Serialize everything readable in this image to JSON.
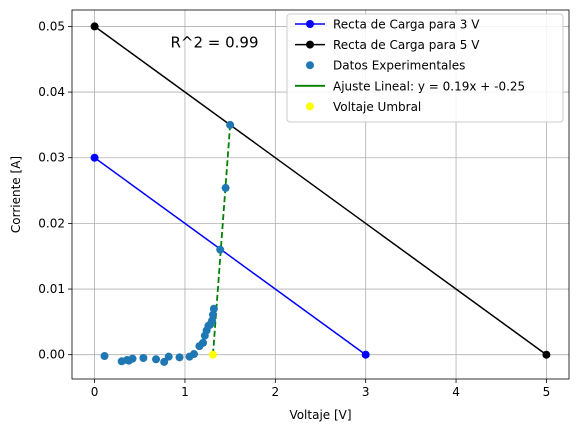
{
  "chart_data": {
    "type": "scatter",
    "xlabel": "Voltaje [V]",
    "ylabel": "Corriente [A]",
    "xlim": [
      -0.25,
      5.25
    ],
    "ylim": [
      -0.0037,
      0.0525
    ],
    "xticks": [
      0,
      1,
      2,
      3,
      4,
      5
    ],
    "yticks": [
      0.0,
      0.01,
      0.02,
      0.03,
      0.04,
      0.05
    ],
    "xtick_labels": [
      "0",
      "1",
      "2",
      "3",
      "4",
      "5"
    ],
    "ytick_labels": [
      "0.00",
      "0.01",
      "0.02",
      "0.03",
      "0.04",
      "0.05"
    ],
    "grid": true,
    "annotation": "R^2 = 0.99",
    "legend_position": "upper right",
    "series": [
      {
        "name": "Recta de Carga para 3 V",
        "kind": "line-marker",
        "color": "#0000ff",
        "x": [
          0,
          3
        ],
        "y": [
          0.03,
          0.0
        ]
      },
      {
        "name": "Recta de Carga para 5 V",
        "kind": "line-marker",
        "color": "#000000",
        "x": [
          0,
          5
        ],
        "y": [
          0.05,
          0.0
        ]
      },
      {
        "name": "Datos Experimentales",
        "kind": "scatter",
        "color": "#1f77b4",
        "x": [
          0.11,
          0.3,
          0.36,
          0.38,
          0.42,
          0.54,
          0.68,
          0.77,
          0.82,
          0.94,
          1.05,
          1.1,
          1.16,
          1.2,
          1.22,
          1.24,
          1.26,
          1.28,
          1.3,
          1.31,
          1.32,
          1.39,
          1.45,
          1.5
        ],
        "y": [
          -0.0002,
          -0.001,
          -0.0008,
          -0.0009,
          -0.0006,
          -0.0005,
          -0.0007,
          -0.0011,
          -0.0003,
          -0.0004,
          -0.0003,
          0.0001,
          0.0013,
          0.0018,
          0.0029,
          0.0037,
          0.0044,
          0.0046,
          0.0052,
          0.0061,
          0.007,
          0.016,
          0.0254,
          0.035
        ]
      },
      {
        "name": "Ajuste Lineal: y = 0.19x + -0.25",
        "kind": "line-dashed",
        "color": "#008000",
        "x": [
          1.31,
          1.5
        ],
        "y": [
          0.0,
          0.035
        ]
      },
      {
        "name": "Voltaje Umbral",
        "kind": "scatter",
        "color": "#ffff00",
        "x": [
          1.31
        ],
        "y": [
          0.0
        ]
      }
    ]
  }
}
